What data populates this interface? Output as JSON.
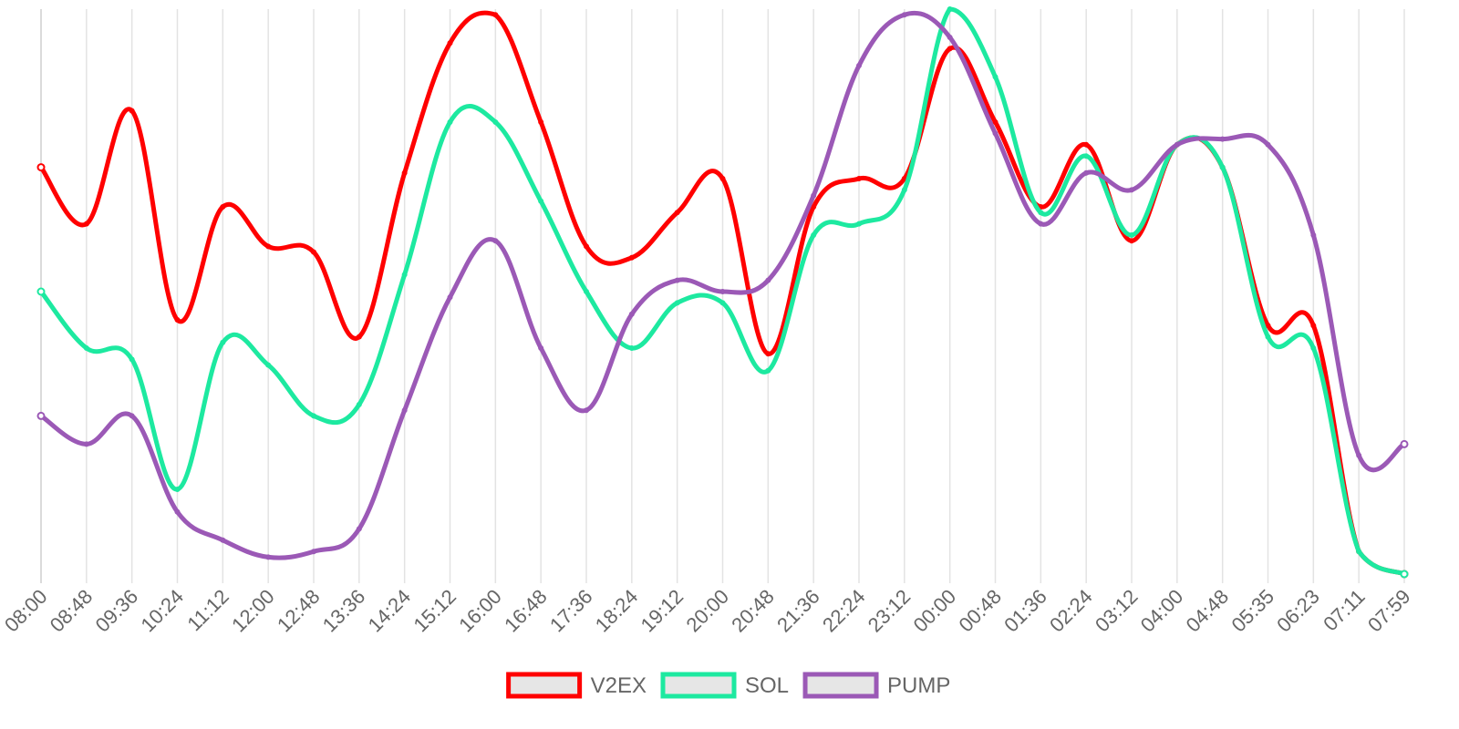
{
  "chart_data": {
    "type": "line",
    "title": "",
    "xlabel": "",
    "ylabel": "",
    "grid": "vertical",
    "legend_position": "bottom-center",
    "x": [
      "08:00",
      "08:48",
      "09:36",
      "10:24",
      "11:12",
      "12:00",
      "12:48",
      "13:36",
      "14:24",
      "15:12",
      "16:00",
      "16:48",
      "17:36",
      "18:24",
      "19:12",
      "20:00",
      "20:48",
      "21:36",
      "22:24",
      "23:12",
      "00:00",
      "00:48",
      "01:36",
      "02:24",
      "03:12",
      "04:00",
      "04:48",
      "05:35",
      "06:23",
      "07:11",
      "07:59"
    ],
    "ylim": [
      0,
      100
    ],
    "series": [
      {
        "name": "V2EX",
        "color": "#ff0000",
        "values": [
          72,
          62,
          82,
          45,
          65,
          58,
          57,
          42,
          71,
          94,
          99,
          80,
          58,
          56,
          64,
          70,
          39,
          65,
          70,
          70,
          93,
          80,
          65,
          76,
          59,
          76,
          72,
          44,
          44,
          4,
          0
        ]
      },
      {
        "name": "SOL",
        "color": "#1de9a0",
        "values": [
          50,
          40,
          38,
          15,
          41,
          37,
          28,
          30,
          53,
          80,
          80,
          66,
          50,
          40,
          48,
          48,
          36,
          60,
          62,
          68,
          100,
          88,
          64,
          74,
          60,
          76,
          72,
          42,
          40,
          4,
          0
        ]
      },
      {
        "name": "PUMP",
        "color": "#9b59b6",
        "values": [
          28,
          23,
          28,
          11,
          6,
          3,
          4,
          8,
          29,
          49,
          59,
          40,
          29,
          46,
          52,
          50,
          52,
          67,
          90,
          99,
          95,
          78,
          62,
          71,
          68,
          76,
          77,
          76,
          60,
          21,
          23
        ]
      }
    ]
  }
}
